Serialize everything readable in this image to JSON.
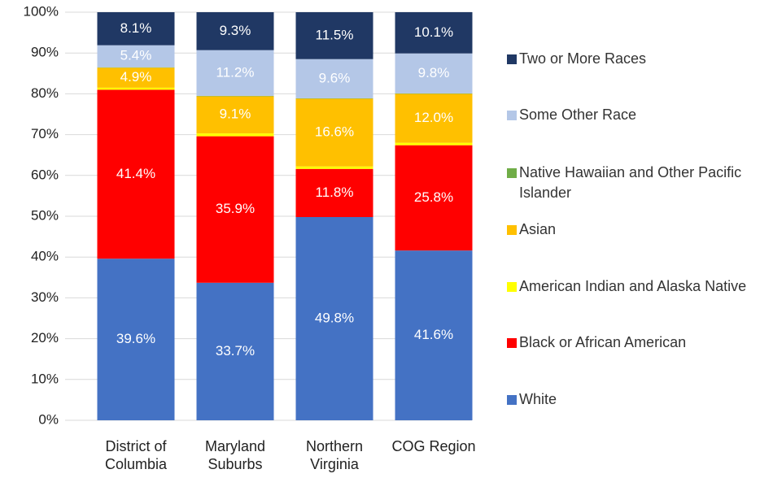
{
  "chart_data": {
    "type": "stacked_bar",
    "categories": [
      "District of Columbia",
      "Maryland Suburbs",
      "Northern Virginia",
      "COG Region"
    ],
    "series": [
      {
        "name": "White",
        "color": "#4472c4",
        "values": [
          39.6,
          33.7,
          49.8,
          41.6
        ],
        "value_labels": [
          "39.6%",
          "33.7%",
          "49.8%",
          "41.6%"
        ]
      },
      {
        "name": "Black or African American",
        "color": "#ff0000",
        "values": [
          41.4,
          35.9,
          11.8,
          25.8
        ],
        "value_labels": [
          "41.4%",
          "35.9%",
          "11.8%",
          "25.8%"
        ]
      },
      {
        "name": "American Indian and Alaska Native",
        "color": "#ffff00",
        "values": [
          0.5,
          0.7,
          0.6,
          0.6
        ]
      },
      {
        "name": "Asian",
        "color": "#ffc000",
        "values": [
          4.9,
          9.1,
          16.6,
          12.0
        ],
        "value_labels": [
          "4.9%",
          "9.1%",
          "16.6%",
          "12.0%"
        ]
      },
      {
        "name": "Native Hawaiian and Other Pacific Islander",
        "color": "#70ad47",
        "values": [
          0.1,
          0.1,
          0.1,
          0.1
        ]
      },
      {
        "name": "Some Other Race",
        "color": "#b4c7e7",
        "values": [
          5.4,
          11.2,
          9.6,
          9.8
        ],
        "value_labels": [
          "5.4%",
          "11.2%",
          "9.6%",
          "9.8%"
        ]
      },
      {
        "name": "Two or More Races",
        "color": "#203864",
        "values": [
          8.1,
          9.3,
          11.5,
          10.1
        ],
        "value_labels": [
          "8.1%",
          "9.3%",
          "11.5%",
          "10.1%"
        ]
      }
    ],
    "ylim": [
      0,
      100
    ],
    "yticks": [
      {
        "value": 0,
        "label": "0%"
      },
      {
        "value": 10,
        "label": "10%"
      },
      {
        "value": 20,
        "label": "20%"
      },
      {
        "value": 30,
        "label": "30%"
      },
      {
        "value": 40,
        "label": "40%"
      },
      {
        "value": 50,
        "label": "50%"
      },
      {
        "value": 60,
        "label": "60%"
      },
      {
        "value": 70,
        "label": "70%"
      },
      {
        "value": 80,
        "label": "80%"
      },
      {
        "value": 90,
        "label": "90%"
      },
      {
        "value": 100,
        "label": "100%"
      }
    ],
    "grid": true,
    "legend": "right"
  }
}
